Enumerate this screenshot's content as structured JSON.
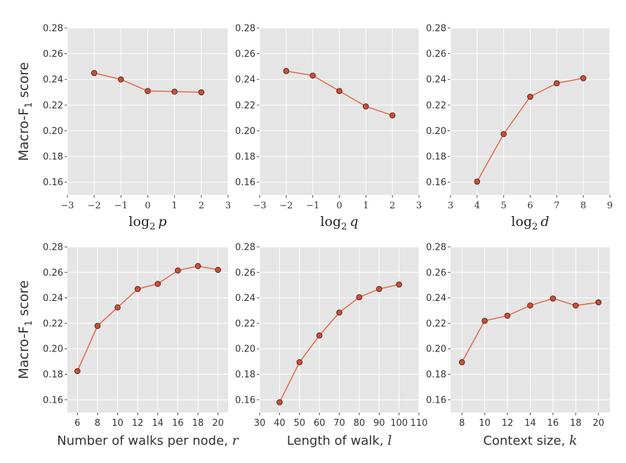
{
  "colors": {
    "panel_bg": "#e5e5e5",
    "grid": "#ffffff",
    "line": "#e2613f",
    "marker_fill": "#c8513a",
    "marker_edge": "#5a2418",
    "text": "#333333"
  },
  "ylabel": {
    "prefix": "Macro-F",
    "subscript": "1",
    "suffix": " score"
  },
  "chart_data": [
    {
      "type": "line",
      "xlabel": "log2 p",
      "xlabel_parts": {
        "fn": "log",
        "sub": "2",
        "var": "p"
      },
      "xlim": [
        -3,
        3
      ],
      "xticks": [
        -3,
        -2,
        -1,
        0,
        1,
        2,
        3
      ],
      "xtick_labels": [
        "−3",
        "−2",
        "−1",
        "0",
        "1",
        "2",
        "3"
      ],
      "ylim": [
        0.15,
        0.28
      ],
      "yticks": [
        "0.28",
        "0.26",
        "0.24",
        "0.22",
        "0.20",
        "0.18",
        "0.16"
      ],
      "x": [
        -2,
        -1,
        0,
        1,
        2
      ],
      "y": [
        0.245,
        0.24,
        0.231,
        0.2305,
        0.23
      ]
    },
    {
      "type": "line",
      "xlabel": "log2 q",
      "xlabel_parts": {
        "fn": "log",
        "sub": "2",
        "var": "q"
      },
      "xlim": [
        -3,
        3
      ],
      "xticks": [
        -3,
        -2,
        -1,
        0,
        1,
        2,
        3
      ],
      "xtick_labels": [
        "−3",
        "−2",
        "−1",
        "0",
        "1",
        "2",
        "3"
      ],
      "ylim": [
        0.15,
        0.28
      ],
      "yticks": [
        "0.28",
        "0.26",
        "0.24",
        "0.22",
        "0.20",
        "0.18",
        "0.16"
      ],
      "x": [
        -2,
        -1,
        0,
        1,
        2
      ],
      "y": [
        0.2465,
        0.243,
        0.231,
        0.219,
        0.212
      ]
    },
    {
      "type": "line",
      "xlabel": "log2 d",
      "xlabel_parts": {
        "fn": "log",
        "sub": "2",
        "var": "d"
      },
      "xlim": [
        3,
        9
      ],
      "xticks": [
        3,
        4,
        5,
        6,
        7,
        8,
        9
      ],
      "xtick_labels": [
        "3",
        "4",
        "5",
        "6",
        "7",
        "8",
        "9"
      ],
      "ylim": [
        0.15,
        0.28
      ],
      "yticks": [
        "0.28",
        "0.26",
        "0.24",
        "0.22",
        "0.20",
        "0.18",
        "0.16"
      ],
      "x": [
        4,
        5,
        6,
        7,
        8
      ],
      "y": [
        0.1605,
        0.1975,
        0.2265,
        0.237,
        0.241
      ]
    },
    {
      "type": "line",
      "xlabel": "Number of walks per node, r",
      "xlabel_parts": {
        "text": "Number of walks per node, ",
        "var": "r"
      },
      "xlim": [
        5,
        21
      ],
      "xticks": [
        6,
        8,
        10,
        12,
        14,
        16,
        18,
        20
      ],
      "xtick_labels": [
        "6",
        "8",
        "10",
        "12",
        "14",
        "16",
        "18",
        "20"
      ],
      "ylim": [
        0.15,
        0.28
      ],
      "yticks": [
        "0.28",
        "0.26",
        "0.24",
        "0.22",
        "0.20",
        "0.18",
        "0.16"
      ],
      "x": [
        6,
        8,
        10,
        12,
        14,
        16,
        18,
        20
      ],
      "y": [
        0.1825,
        0.218,
        0.2325,
        0.247,
        0.251,
        0.2615,
        0.265,
        0.262
      ]
    },
    {
      "type": "line",
      "xlabel": "Length of walk, l",
      "xlabel_parts": {
        "text": "Length of walk, ",
        "var": "l"
      },
      "xlim": [
        30,
        110
      ],
      "xticks": [
        30,
        40,
        50,
        60,
        70,
        80,
        90,
        100,
        110
      ],
      "xtick_labels": [
        "30",
        "40",
        "50",
        "60",
        "70",
        "80",
        "90",
        "100",
        "110"
      ],
      "ylim": [
        0.15,
        0.28
      ],
      "yticks": [
        "0.28",
        "0.26",
        "0.24",
        "0.22",
        "0.20",
        "0.18",
        "0.16"
      ],
      "x": [
        40,
        50,
        60,
        70,
        80,
        90,
        100
      ],
      "y": [
        0.158,
        0.1895,
        0.2105,
        0.2285,
        0.2405,
        0.247,
        0.2505
      ]
    },
    {
      "type": "line",
      "xlabel": "Context size, k",
      "xlabel_parts": {
        "text": "Context size, ",
        "var": "k"
      },
      "xlim": [
        7,
        21
      ],
      "xticks": [
        8,
        10,
        12,
        14,
        16,
        18,
        20
      ],
      "xtick_labels": [
        "8",
        "10",
        "12",
        "14",
        "16",
        "18",
        "20"
      ],
      "ylim": [
        0.15,
        0.28
      ],
      "yticks": [
        "0.28",
        "0.26",
        "0.24",
        "0.22",
        "0.20",
        "0.18",
        "0.16"
      ],
      "x": [
        8,
        10,
        12,
        14,
        16,
        18,
        20
      ],
      "y": [
        0.1895,
        0.222,
        0.226,
        0.234,
        0.2395,
        0.234,
        0.2365
      ]
    }
  ]
}
